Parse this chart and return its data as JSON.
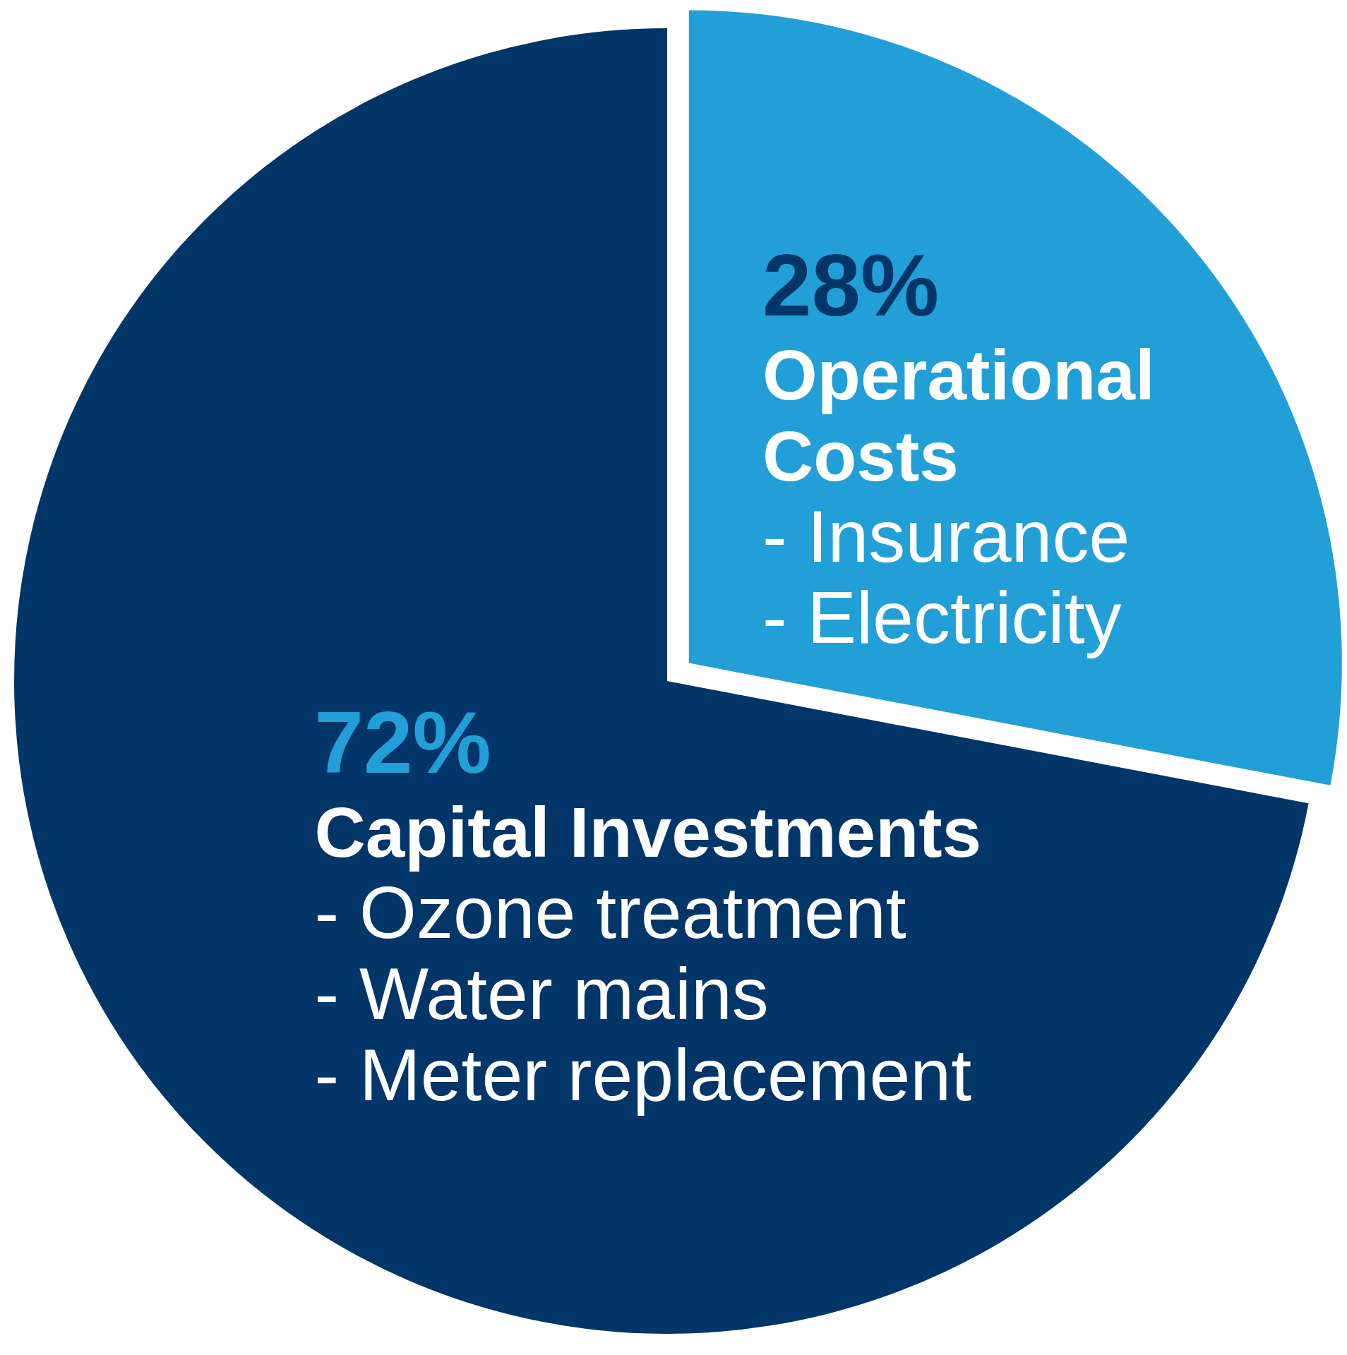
{
  "chart_data": {
    "type": "pie",
    "categories": [
      "Operational Costs",
      "Capital Investments"
    ],
    "values": [
      28,
      72
    ],
    "value_labels": [
      "28%",
      "72%"
    ],
    "colors": [
      "#229fd6",
      "#033668"
    ],
    "annotations": [
      "- Insurance\n- Electricity",
      "- Ozone treatment\n- Water mains\n- Meter replacement"
    ]
  }
}
